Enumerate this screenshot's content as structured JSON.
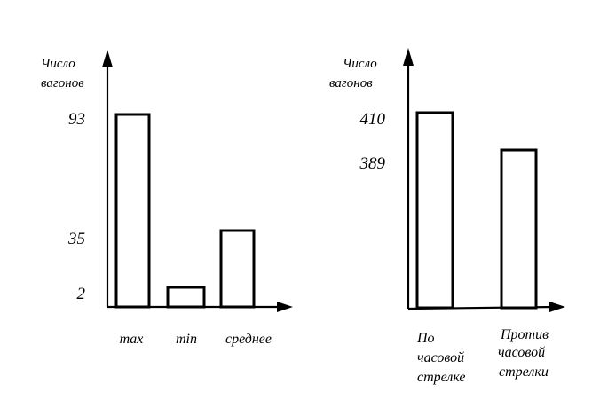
{
  "chart_data": [
    {
      "type": "bar",
      "ylabel": [
        "Число",
        "вагонов"
      ],
      "categories": [
        [
          "max"
        ],
        [
          "min"
        ],
        [
          "среднее"
        ]
      ],
      "values": [
        93,
        2,
        35
      ],
      "yticks": [
        "93",
        "35",
        "2"
      ]
    },
    {
      "type": "bar",
      "ylabel": [
        "Число",
        "вагонов"
      ],
      "categories": [
        [
          "По",
          "часовой",
          "стрелке"
        ],
        [
          "Против",
          "часовой",
          "стрелки"
        ]
      ],
      "values": [
        410,
        389
      ],
      "yticks": [
        "410",
        "389"
      ]
    }
  ]
}
